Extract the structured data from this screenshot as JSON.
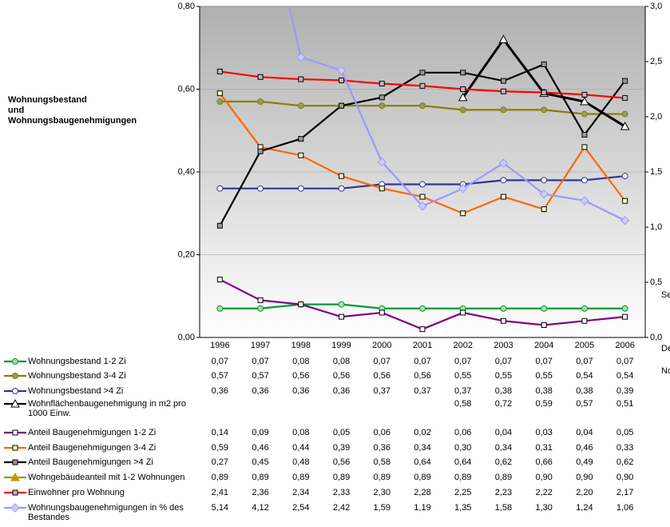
{
  "chart_data": {
    "type": "line",
    "title": "Wohnungsbestand und Wohnungsbaugenehmigungen",
    "categories": [
      "1996",
      "1997",
      "1998",
      "1999",
      "2000",
      "2001",
      "2002",
      "2003",
      "2004",
      "2005",
      "2006"
    ],
    "ylim": [
      0,
      0.8
    ],
    "yticks": [
      {
        "value": 0,
        "label": "0,00"
      },
      {
        "value": 0.2,
        "label": "0,20"
      },
      {
        "value": 0.4,
        "label": "0,40"
      },
      {
        "value": 0.6,
        "label": "0,60"
      },
      {
        "value": 0.8,
        "label": "0,80"
      }
    ],
    "y2lim": [
      0,
      3
    ],
    "y2ticks": [
      {
        "value": 0,
        "label": "0,0"
      },
      {
        "value": 0.5,
        "label": "0,5"
      },
      {
        "value": 1,
        "label": "1,0"
      },
      {
        "value": 1.5,
        "label": "1,5"
      },
      {
        "value": 2,
        "label": "2,0"
      },
      {
        "value": 2.5,
        "label": "2,5"
      },
      {
        "value": 3,
        "label": "3,0"
      }
    ],
    "grid": true,
    "annotations": [
      "De",
      "No",
      "Sep"
    ],
    "series": [
      {
        "name": "Wohnungsbestand 1-2 Zi",
        "color": "#009933",
        "marker": "circle",
        "marker_fill": "#aaddaa",
        "axis": "y",
        "values": [
          0.07,
          0.07,
          0.08,
          0.08,
          0.07,
          0.07,
          0.07,
          0.07,
          0.07,
          0.07,
          0.07
        ],
        "value_labels": [
          "0,07",
          "0,07",
          "0,08",
          "0,08",
          "0,07",
          "0,07",
          "0,07",
          "0,07",
          "0,07",
          "0,07",
          "0,07"
        ]
      },
      {
        "name": "Wohnungsbestand 3-4 Zi",
        "color": "#808000",
        "marker": "circle",
        "marker_fill": "#999966",
        "axis": "y",
        "values": [
          0.57,
          0.57,
          0.56,
          0.56,
          0.56,
          0.56,
          0.55,
          0.55,
          0.55,
          0.54,
          0.54
        ],
        "value_labels": [
          "0,57",
          "0,57",
          "0,56",
          "0,56",
          "0,56",
          "0,56",
          "0,55",
          "0,55",
          "0,55",
          "0,54",
          "0,54"
        ]
      },
      {
        "name": "Wohnungsbestand >4 Zi",
        "color": "#333399",
        "marker": "circle",
        "marker_fill": "#ffffff",
        "axis": "y",
        "values": [
          0.36,
          0.36,
          0.36,
          0.36,
          0.37,
          0.37,
          0.37,
          0.38,
          0.38,
          0.38,
          0.39
        ],
        "value_labels": [
          "0,36",
          "0,36",
          "0,36",
          "0,36",
          "0,37",
          "0,37",
          "0,37",
          "0,38",
          "0,38",
          "0,38",
          "0,39"
        ]
      },
      {
        "name": "Wohnflächenbaugenehmigung in m2 pro 1000 Einw.",
        "color": "#000000",
        "marker": "triangle",
        "marker_fill": "#ffffff",
        "axis": "y",
        "values": [
          null,
          null,
          null,
          null,
          null,
          null,
          0.58,
          0.72,
          0.59,
          0.57,
          0.51
        ],
        "value_labels": [
          null,
          null,
          null,
          null,
          null,
          null,
          "0,58",
          "0,72",
          "0,59",
          "0,57",
          "0,51"
        ]
      },
      {
        "name": "Anteil Baugenehmigungen 1-2 Zi",
        "color": "#800080",
        "marker": "square",
        "marker_fill": "#ffffff",
        "axis": "y",
        "values": [
          0.14,
          0.09,
          0.08,
          0.05,
          0.06,
          0.02,
          0.06,
          0.04,
          0.03,
          0.04,
          0.05
        ],
        "value_labels": [
          "0,14",
          "0,09",
          "0,08",
          "0,05",
          "0,06",
          "0,02",
          "0,06",
          "0,04",
          "0,03",
          "0,04",
          "0,05"
        ]
      },
      {
        "name": "Anteil Baugenehmigungen 3-4 Zi",
        "color": "#ff6600",
        "marker": "square",
        "marker_fill": "#ffffcc",
        "axis": "y",
        "values": [
          0.59,
          0.46,
          0.44,
          0.39,
          0.36,
          0.34,
          0.3,
          0.34,
          0.31,
          0.46,
          0.33
        ],
        "value_labels": [
          "0,59",
          "0,46",
          "0,44",
          "0,39",
          "0,36",
          "0,34",
          "0,30",
          "0,34",
          "0,31",
          "0,46",
          "0,33"
        ]
      },
      {
        "name": "Anteil Baugenehmigungen >4 Zi",
        "color": "#000000",
        "marker": "square",
        "marker_fill": "#999999",
        "axis": "y",
        "values": [
          0.27,
          0.45,
          0.48,
          0.56,
          0.58,
          0.64,
          0.64,
          0.62,
          0.66,
          0.49,
          0.62
        ],
        "value_labels": [
          "0,27",
          "0,45",
          "0,48",
          "0,56",
          "0,58",
          "0,64",
          "0,64",
          "0,62",
          "0,66",
          "0,49",
          "0,62"
        ]
      },
      {
        "name": "Wohngebäudeanteil mit 1-2 Wohnungen",
        "color": "#999900",
        "marker": "triangle",
        "marker_fill": "#cc9900",
        "axis": "y",
        "values": [
          0.89,
          0.89,
          0.89,
          0.89,
          0.89,
          0.89,
          0.89,
          0.89,
          0.9,
          0.9,
          0.9
        ],
        "value_labels": [
          "0,89",
          "0,89",
          "0,89",
          "0,89",
          "0,89",
          "0,89",
          "0,89",
          "0,89",
          "0,90",
          "0,90",
          "0,90"
        ]
      },
      {
        "name": "Einwohner pro Wohnung",
        "color": "#ff0000",
        "marker": "square",
        "marker_fill": "#bbbbbb",
        "axis": "y2",
        "values": [
          2.41,
          2.36,
          2.34,
          2.33,
          2.3,
          2.28,
          2.25,
          2.23,
          2.22,
          2.2,
          2.17
        ],
        "value_labels": [
          "2,41",
          "2,36",
          "2,34",
          "2,33",
          "2,30",
          "2,28",
          "2,25",
          "2,23",
          "2,22",
          "2,20",
          "2,17"
        ]
      },
      {
        "name": "Wohnungsbaugenehmigungen in % des Bestandes",
        "color": "#9999ff",
        "marker": "diamond",
        "marker_fill": "#ccccff",
        "axis": "y2",
        "values": [
          5.14,
          4.12,
          2.54,
          2.42,
          1.59,
          1.19,
          1.35,
          1.58,
          1.3,
          1.24,
          1.06
        ],
        "value_labels": [
          "5,14",
          "4,12",
          "2,54",
          "2,42",
          "1,59",
          "1,19",
          "1,35",
          "1,58",
          "1,30",
          "1,24",
          "1,06"
        ]
      }
    ]
  }
}
